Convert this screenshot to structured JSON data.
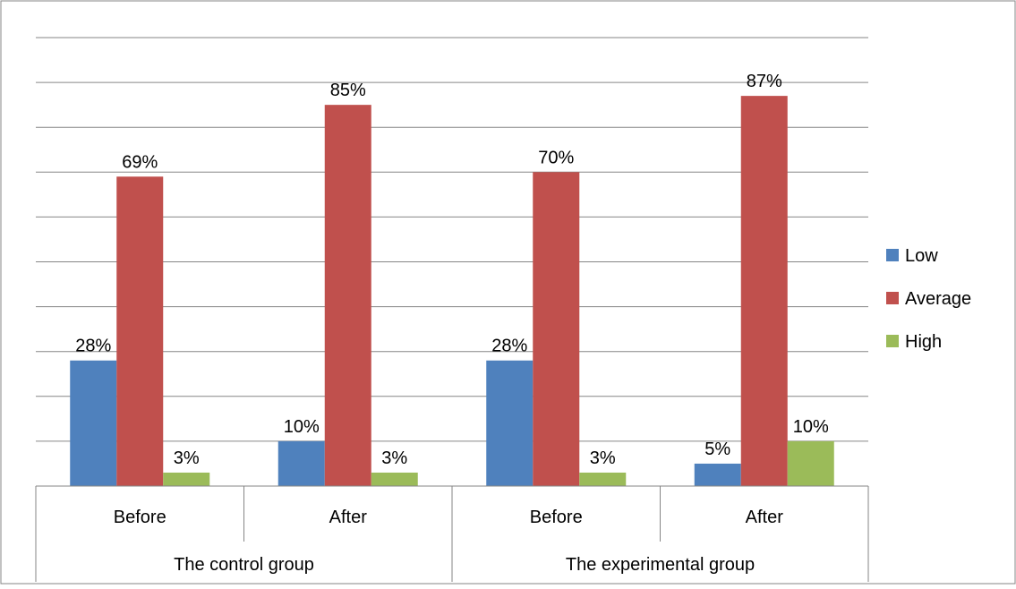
{
  "chart_data": {
    "type": "bar",
    "title": "",
    "xlabel": "",
    "ylabel": "",
    "ylim": [
      0,
      100
    ],
    "y_axis_labels_shown": false,
    "gridlines": true,
    "legend_position": "right",
    "groups": [
      {
        "label": "The control group",
        "categories": [
          "Before",
          "After"
        ]
      },
      {
        "label": "The experimental group",
        "categories": [
          "Before",
          "After"
        ]
      }
    ],
    "categories": [
      "Before",
      "After",
      "Before",
      "After"
    ],
    "series": [
      {
        "name": "Low",
        "color": "#4F81BD",
        "values": [
          28,
          10,
          28,
          5
        ],
        "labels": [
          "28%",
          "10%",
          "28%",
          "5%"
        ]
      },
      {
        "name": "Average",
        "color": "#C0504D",
        "values": [
          69,
          85,
          70,
          87
        ],
        "labels": [
          "69%",
          "85%",
          "70%",
          "87%"
        ]
      },
      {
        "name": "High",
        "color": "#9BBB59",
        "values": [
          3,
          3,
          3,
          10
        ],
        "labels": [
          "3%",
          "3%",
          "3%",
          "10%"
        ]
      }
    ]
  }
}
